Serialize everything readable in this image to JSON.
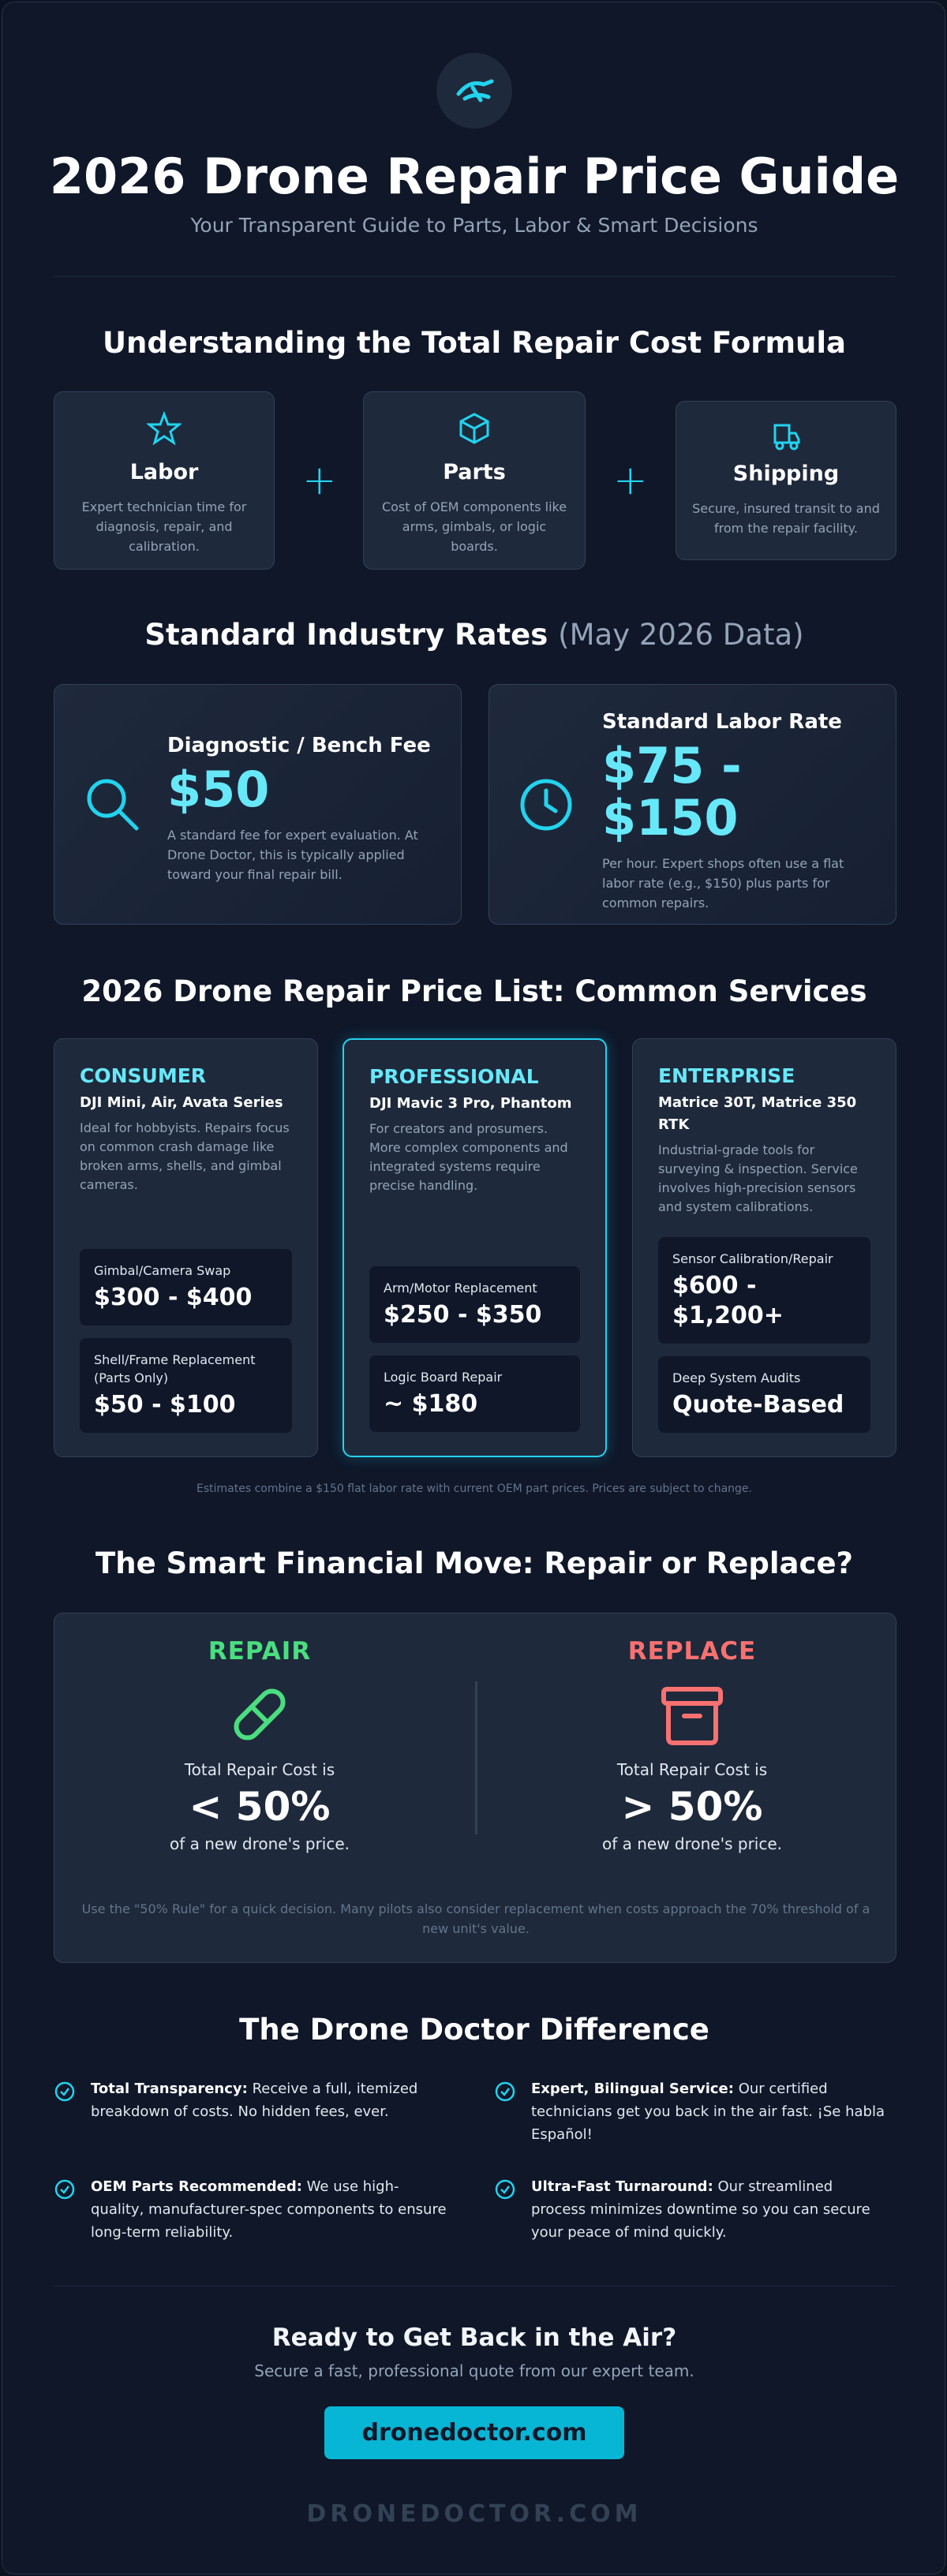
{
  "header": {
    "title": "2026 Drone Repair Price Guide",
    "subtitle": "Your Transparent Guide to Parts, Labor & Smart Decisions"
  },
  "formula": {
    "title": "Understanding the Total Repair Cost Formula",
    "items": [
      {
        "title": "Labor",
        "desc": "Expert technician time for diagnosis, repair, and calibration."
      },
      {
        "title": "Parts",
        "desc": "Cost of OEM components like arms, gimbals, or logic boards."
      },
      {
        "title": "Shipping",
        "desc": "Secure, insured transit to and from the repair facility."
      }
    ]
  },
  "rates": {
    "title": "Standard Industry Rates",
    "title_note": "(May 2026 Data)",
    "cards": [
      {
        "label": "Diagnostic / Bench Fee",
        "price": "$50",
        "desc": "A standard fee for expert evaluation. At Drone Doctor, this is typically applied toward your final repair bill."
      },
      {
        "label": "Standard Labor Rate",
        "price": "$75 - $150",
        "desc": "Per hour. Expert shops often use a flat labor rate (e.g., $150) plus parts for common repairs."
      }
    ]
  },
  "price_list": {
    "title": "2026 Drone Repair Price List: Common Services",
    "tiers": [
      {
        "name": "CONSUMER",
        "models": "DJI Mini, Air, Avata Series",
        "desc": "Ideal for hobbyists. Repairs focus on common crash damage like broken arms, shells, and gimbal cameras.",
        "services": [
          {
            "name": "Gimbal/Camera Swap",
            "price": "$300 - $400"
          },
          {
            "name": "Shell/Frame Replacement (Parts Only)",
            "price": "$50 - $100"
          }
        ]
      },
      {
        "name": "PROFESSIONAL",
        "models": "DJI Mavic 3 Pro, Phantom",
        "desc": "For creators and prosumers. More complex components and integrated systems require precise handling.",
        "services": [
          {
            "name": "Arm/Motor Replacement",
            "price": "$250 - $350"
          },
          {
            "name": "Logic Board Repair",
            "price": "~ $180"
          }
        ]
      },
      {
        "name": "ENTERPRISE",
        "models": "Matrice 30T, Matrice 350 RTK",
        "desc": "Industrial-grade tools for surveying & inspection. Service involves high-precision sensors and system calibrations.",
        "services": [
          {
            "name": "Sensor Calibration/Repair",
            "price": "$600 - $1,200+"
          },
          {
            "name": "Deep System Audits",
            "price": "Quote-Based"
          }
        ]
      }
    ],
    "note": "Estimates combine a $150 flat labor rate with current OEM part prices. Prices are subject to change."
  },
  "decision": {
    "title": "The Smart Financial Move: Repair or Replace?",
    "options": [
      {
        "label": "REPAIR",
        "lead": "Total Repair Cost is",
        "value": "< 50%",
        "tail": "of a new drone's price."
      },
      {
        "label": "REPLACE",
        "lead": "Total Repair Cost is",
        "value": "> 50%",
        "tail": "of a new drone's price."
      }
    ],
    "note": "Use the \"50% Rule\" for a quick decision. Many pilots also consider replacement when costs approach the 70% threshold of a new unit's value."
  },
  "difference": {
    "title": "The Drone Doctor Difference",
    "items": [
      {
        "title": "Total Transparency:",
        "text": "Receive a full, itemized breakdown of costs. No hidden fees, ever."
      },
      {
        "title": "Expert, Bilingual Service:",
        "text": "Our certified technicians get you back in the air fast. ¡Se habla Español!"
      },
      {
        "title": "OEM Parts Recommended:",
        "text": "We use high-quality, manufacturer-spec components to ensure long-term reliability."
      },
      {
        "title": "Ultra-Fast Turnaround:",
        "text": "Our streamlined process minimizes downtime so you can secure your peace of mind quickly."
      }
    ]
  },
  "cta": {
    "title": "Ready to Get Back in the Air?",
    "subtitle": "Secure a fast, professional quote from our expert team.",
    "button": "dronedoctor.com"
  },
  "footer": {
    "brand": "DRONEDOCTOR.COM"
  }
}
